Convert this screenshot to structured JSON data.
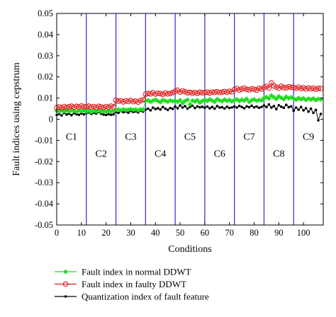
{
  "chart_data": {
    "type": "line",
    "title": "",
    "xlabel": "Conditions",
    "ylabel": "Fault indices using cepstrum",
    "xlim": [
      0,
      108
    ],
    "ylim": [
      -0.05,
      0.05
    ],
    "x_ticks": [
      0,
      10,
      20,
      30,
      40,
      50,
      60,
      70,
      80,
      90,
      100
    ],
    "y_ticks": [
      -0.05,
      -0.04,
      -0.03,
      -0.02,
      -0.01,
      0,
      0.01,
      0.02,
      0.03,
      0.04,
      0.05
    ],
    "x_tick_labels": [
      "0",
      "10",
      "20",
      "30",
      "40",
      "50",
      "60",
      "70",
      "80",
      "90",
      "100"
    ],
    "y_tick_labels": [
      "-0.05",
      "-0.04",
      "-0.03",
      "-0.02",
      "-0.01",
      "0",
      "0.01",
      "0.02",
      "0.03",
      "0.04",
      "0.05"
    ],
    "grid": false,
    "legend_position": "below",
    "condition_boundaries": [
      12,
      24,
      36,
      48,
      60,
      72,
      84,
      96
    ],
    "condition_labels": [
      {
        "text": "C1",
        "x": 6,
        "y": -0.008
      },
      {
        "text": "C2",
        "x": 18,
        "y": -0.016
      },
      {
        "text": "C3",
        "x": 30,
        "y": -0.008
      },
      {
        "text": "C4",
        "x": 42,
        "y": -0.016
      },
      {
        "text": "C5",
        "x": 54,
        "y": -0.008
      },
      {
        "text": "C6",
        "x": 66,
        "y": -0.016
      },
      {
        "text": "C7",
        "x": 78,
        "y": -0.008
      },
      {
        "text": "C8",
        "x": 90,
        "y": -0.016
      },
      {
        "text": "C9",
        "x": 102,
        "y": -0.008
      }
    ],
    "series": [
      {
        "name": "Fault index in normal DDWT",
        "color": "#22dd22",
        "marker": "diamond",
        "values": [
          0.004,
          0.0036,
          0.0042,
          0.0038,
          0.0041,
          0.0037,
          0.0043,
          0.0039,
          0.0035,
          0.0041,
          0.0038,
          0.0042,
          0.0036,
          0.004,
          0.0034,
          0.0039,
          0.0037,
          0.0041,
          0.0036,
          0.0038,
          0.0035,
          0.004,
          0.0037,
          0.0039,
          0.0044,
          0.0046,
          0.0042,
          0.0047,
          0.0043,
          0.0045,
          0.0048,
          0.0044,
          0.0046,
          0.0042,
          0.0047,
          0.0045,
          0.0085,
          0.009,
          0.0082,
          0.0088,
          0.0092,
          0.0086,
          0.008,
          0.0091,
          0.0087,
          0.0083,
          0.0089,
          0.0085,
          0.0088,
          0.0082,
          0.009,
          0.0076,
          0.0086,
          0.0092,
          0.007,
          0.0088,
          0.0084,
          0.009,
          0.0078,
          0.0086,
          0.0092,
          0.0086,
          0.0094,
          0.0088,
          0.0082,
          0.0095,
          0.0089,
          0.0085,
          0.0093,
          0.0087,
          0.0091,
          0.0084,
          0.009,
          0.0094,
          0.0086,
          0.0092,
          0.0088,
          0.0096,
          0.0082,
          0.009,
          0.0094,
          0.0087,
          0.0091,
          0.0089,
          0.01,
          0.0105,
          0.0098,
          0.0112,
          0.0103,
          0.0096,
          0.0108,
          0.0101,
          0.0095,
          0.0106,
          0.0099,
          0.0104,
          0.0098,
          0.0092,
          0.01,
          0.0094,
          0.0099,
          0.0091,
          0.0097,
          0.0093,
          0.0098,
          0.009,
          0.0096,
          0.0094
        ]
      },
      {
        "name": "Fault index in faulty DDWT",
        "color": "#e02020",
        "marker": "circle",
        "values": [
          0.0055,
          0.0058,
          0.0054,
          0.006,
          0.0056,
          0.0059,
          0.0062,
          0.0057,
          0.0061,
          0.0058,
          0.0063,
          0.006,
          0.0058,
          0.0062,
          0.0057,
          0.006,
          0.0056,
          0.0061,
          0.0058,
          0.0055,
          0.006,
          0.0057,
          0.0062,
          0.0058,
          0.009,
          0.0085,
          0.0088,
          0.0082,
          0.0087,
          0.0084,
          0.0089,
          0.0083,
          0.0086,
          0.0081,
          0.0088,
          0.0092,
          0.0118,
          0.0122,
          0.012,
          0.0125,
          0.0119,
          0.0123,
          0.0121,
          0.0118,
          0.0124,
          0.012,
          0.0122,
          0.0126,
          0.0132,
          0.0137,
          0.0128,
          0.0134,
          0.013,
          0.0125,
          0.0127,
          0.0124,
          0.0126,
          0.0123,
          0.0128,
          0.0125,
          0.0126,
          0.0128,
          0.0124,
          0.0129,
          0.0127,
          0.013,
          0.0126,
          0.0128,
          0.0131,
          0.0127,
          0.0132,
          0.0129,
          0.014,
          0.0145,
          0.0138,
          0.0143,
          0.0147,
          0.0141,
          0.0139,
          0.0144,
          0.0142,
          0.0138,
          0.0146,
          0.0143,
          0.015,
          0.0155,
          0.0148,
          0.0172,
          0.0158,
          0.0152,
          0.0147,
          0.0156,
          0.015,
          0.0148,
          0.0154,
          0.0151,
          0.015,
          0.0146,
          0.0152,
          0.0145,
          0.0149,
          0.0143,
          0.0148,
          0.0144,
          0.0147,
          0.0142,
          0.0146,
          0.0145
        ]
      },
      {
        "name": "Quantization index of fault feature",
        "color": "#000000",
        "marker": "dot",
        "values": [
          0.002,
          0.0025,
          0.0018,
          0.003,
          0.0022,
          0.0026,
          0.0019,
          0.0028,
          0.0024,
          0.0021,
          0.0027,
          0.0023,
          0.0028,
          0.0032,
          0.0025,
          0.003,
          0.0027,
          0.0034,
          0.0026,
          0.0022,
          0.002,
          0.0024,
          0.0021,
          0.0023,
          0.0035,
          0.003,
          0.0038,
          0.0033,
          0.0036,
          0.0031,
          0.0039,
          0.0034,
          0.0037,
          0.0032,
          0.004,
          0.0036,
          0.0045,
          0.005,
          0.0042,
          0.0055,
          0.0048,
          0.0052,
          0.0046,
          0.0058,
          0.005,
          0.0044,
          0.0053,
          0.0049,
          0.006,
          0.0052,
          0.0065,
          0.0055,
          0.0062,
          0.005,
          0.0058,
          0.0064,
          0.0053,
          0.0061,
          0.0056,
          0.0059,
          0.0054,
          0.006,
          0.0052,
          0.0058,
          0.005,
          0.0062,
          0.0055,
          0.0057,
          0.0051,
          0.0059,
          0.0053,
          0.0056,
          0.006,
          0.0055,
          0.0063,
          0.0058,
          0.0052,
          0.0061,
          0.0057,
          0.0064,
          0.0056,
          0.006,
          0.0054,
          0.0058,
          0.0065,
          0.0058,
          0.007,
          0.0055,
          0.0062,
          0.0048,
          0.0066,
          0.0059,
          0.0054,
          0.0068,
          0.0057,
          0.0061,
          0.004,
          0.0055,
          0.0045,
          0.0058,
          0.0042,
          0.0052,
          0.0036,
          0.005,
          0.003,
          0.0044,
          -0.0005,
          0.0025
        ]
      }
    ]
  }
}
